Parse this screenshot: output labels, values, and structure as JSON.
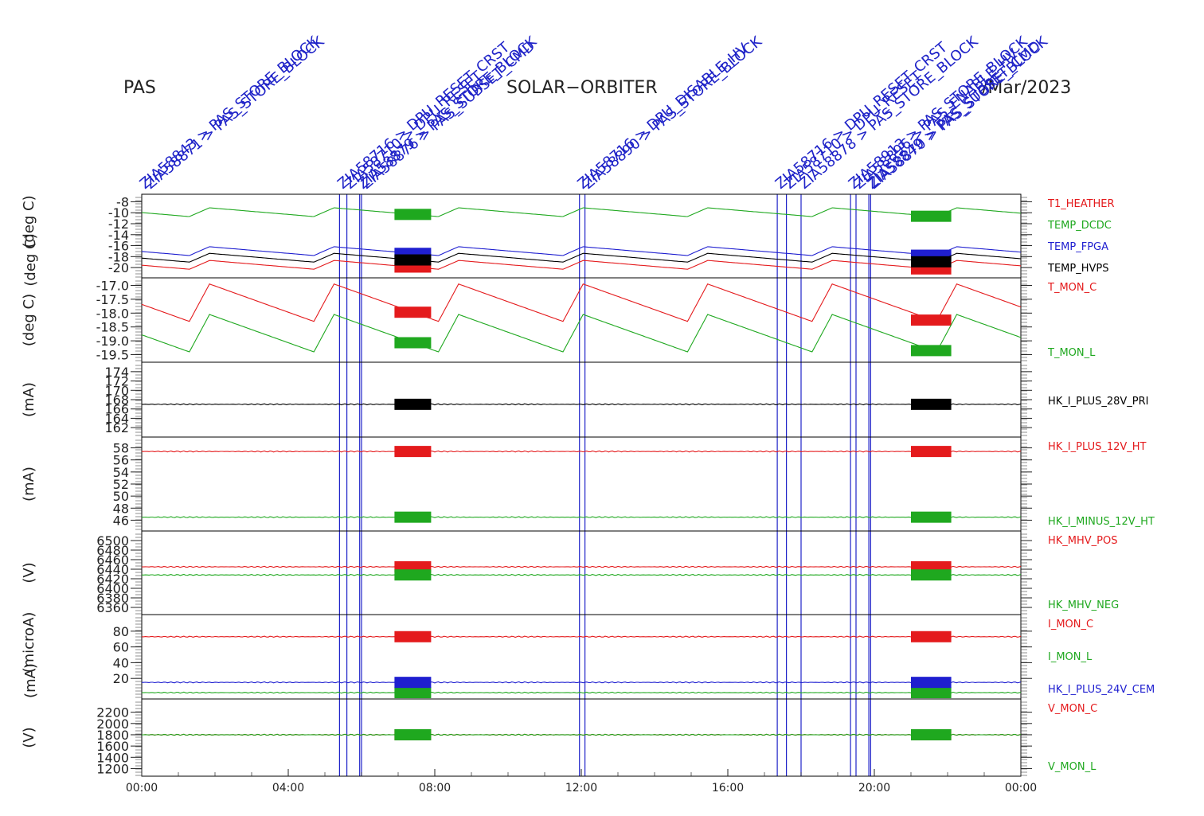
{
  "header": {
    "left": "PAS",
    "center": "SOLAR−ORBITER",
    "right": "/Mar/2023"
  },
  "x_axis": {
    "ticks": [
      "00:00",
      "04:00",
      "08:00",
      "12:00",
      "16:00",
      "20:00",
      "00:00"
    ]
  },
  "commands": {
    "color": "#1f23c8",
    "lines_h": [
      5.4,
      5.6,
      5.95,
      6.0,
      11.95,
      12.1,
      17.35,
      17.6,
      18.0,
      19.35,
      19.5,
      19.85,
      19.9
    ],
    "labels": [
      {
        "text": "ZIA58843 > PAS_STORE_BLOCK",
        "h": 0.0
      },
      {
        "text": "ZIA58871 > PAS_STORE_BLOCK",
        "h": 0.15
      },
      {
        "text": "ZIA58716 > DPU_RESET_CRST",
        "h": 5.4
      },
      {
        "text": "ZIA58710 > DPU_RESET",
        "h": 5.6
      },
      {
        "text": "ZIA58879 > PAS_STORE_BLOCK",
        "h": 5.95
      },
      {
        "text": "ZIA58876 > PAS_SUBSET_CMD",
        "h": 6.05
      },
      {
        "text": "ZIA58716 > DPU_DISABLE_HV",
        "h": 11.95
      },
      {
        "text": "ZIA58890 > PAS_STORE_BLOCK",
        "h": 12.1
      },
      {
        "text": "ZIA58716 > DPU_RESET_CRST",
        "h": 17.35
      },
      {
        "text": "ZIA58710 > DPU_RESET",
        "h": 17.6
      },
      {
        "text": "ZIA58878 > PAS_STORE_BLOCK",
        "h": 18.0
      },
      {
        "text": "ZIA58913 > PAS_STORE_BLOCK",
        "h": 19.35
      },
      {
        "text": "ZIA58896 > PAS_ENABLE_HV",
        "h": 19.5
      },
      {
        "text": "ZIA58849 > PAS_SUBSET_CMD",
        "h": 19.85
      },
      {
        "text": "ZIA58870 > PAS_STORE_BLOCK",
        "h": 19.9
      }
    ]
  },
  "chart_data": [
    {
      "type": "line",
      "panel": "temperatures",
      "ylabel": "(deg C)",
      "ylabel2": "(deg C)",
      "ylim": [
        -21,
        -7.5
      ],
      "ticks": [
        "-8",
        "-10",
        "-12",
        "-14",
        "-16",
        "-18",
        "-20"
      ],
      "tick_values": [
        -8,
        -10,
        -12,
        -14,
        -16,
        -18,
        -20
      ],
      "series": [
        {
          "name": "T1_HEATHER",
          "color": "#e41a1c",
          "pattern": "saw",
          "base": -20.3,
          "amp": 1.6,
          "period": 3.4,
          "phase": 1.3
        },
        {
          "name": "TEMP_DCDC",
          "color": "#1fa81f",
          "pattern": "saw",
          "base": -10.7,
          "amp": 1.6,
          "period": 3.4,
          "phase": 1.3
        },
        {
          "name": "TEMP_FPGA",
          "color": "#1f1fd0",
          "pattern": "saw",
          "base": -17.8,
          "amp": 1.6,
          "period": 3.4,
          "phase": 1.3
        },
        {
          "name": "TEMP_HVPS",
          "color": "#000000",
          "pattern": "saw",
          "base": -19.0,
          "amp": 1.6,
          "period": 3.4,
          "phase": 1.3
        }
      ]
    },
    {
      "type": "line",
      "panel": "mon_temps",
      "ylabel": "(deg C)",
      "ylim": [
        -19.6,
        -16.9
      ],
      "ticks": [
        "-17.0",
        "-17.5",
        "-18.0",
        "-18.5",
        "-19.0",
        "-19.5"
      ],
      "tick_values": [
        -17.0,
        -17.5,
        -18.0,
        -18.5,
        -19.0,
        -19.5
      ],
      "series": [
        {
          "name": "T_MON_C",
          "color": "#e41a1c",
          "pattern": "saw",
          "base": -18.3,
          "amp": 1.35,
          "period": 3.4,
          "phase": 1.3
        },
        {
          "name": "T_MON_L",
          "color": "#1fa81f",
          "pattern": "saw",
          "base": -19.4,
          "amp": 1.35,
          "period": 3.4,
          "phase": 1.3
        }
      ]
    },
    {
      "type": "line",
      "panel": "primary_current",
      "ylabel": "(mA)",
      "ylim": [
        161,
        175
      ],
      "ticks": [
        "174",
        "172",
        "170",
        "168",
        "166",
        "164",
        "162"
      ],
      "tick_values": [
        174,
        172,
        170,
        168,
        166,
        164,
        162
      ],
      "series": [
        {
          "name": "HK_I_PLUS_28V_PRI",
          "color": "#000000",
          "pattern": "flat",
          "base": 167.0
        }
      ]
    },
    {
      "type": "line",
      "panel": "plus_minus_12v",
      "ylabel": "(mA)",
      "ylim": [
        45,
        59
      ],
      "ticks": [
        "58",
        "56",
        "54",
        "52",
        "50",
        "48",
        "46"
      ],
      "tick_values": [
        58,
        56,
        54,
        52,
        50,
        48,
        46
      ],
      "series": [
        {
          "name": "HK_I_PLUS_12V_HT",
          "color": "#e41a1c",
          "pattern": "flat",
          "base": 57.4
        },
        {
          "name": "HK_I_MINUS_12V_HT",
          "color": "#1fa81f",
          "pattern": "flat",
          "base": 46.5
        }
      ]
    },
    {
      "type": "line",
      "panel": "mhv",
      "ylabel": "(V)",
      "ylim": [
        6355,
        6510
      ],
      "ticks": [
        "6500",
        "6480",
        "6460",
        "6440",
        "6420",
        "6400",
        "6380",
        "6360"
      ],
      "tick_values": [
        6500,
        6480,
        6460,
        6440,
        6420,
        6400,
        6380,
        6360
      ],
      "series": [
        {
          "name": "HK_MHV_POS",
          "color": "#e41a1c",
          "pattern": "flat",
          "base": 6445
        },
        {
          "name": "HK_MHV_NEG",
          "color": "#1fa81f",
          "pattern": "flat",
          "base": 6428
        }
      ]
    },
    {
      "type": "line",
      "panel": "mon_currents",
      "ylabel": "(microA)",
      "ylabel2": "(mA)",
      "ylim": [
        0,
        95
      ],
      "ticks": [
        "80",
        "60",
        "40",
        "20"
      ],
      "tick_values": [
        80,
        60,
        40,
        20
      ],
      "series": [
        {
          "name": "I_MON_C",
          "color": "#e41a1c",
          "pattern": "flat",
          "base": 73
        },
        {
          "name": "I_MON_L",
          "color": "#1fa81f",
          "pattern": "flat",
          "base": 2
        },
        {
          "name": "HK_I_PLUS_24V_CEM",
          "color": "#1f1fd0",
          "pattern": "flat",
          "base": 15
        }
      ]
    },
    {
      "type": "line",
      "panel": "mon_voltages",
      "ylabel": "(V)",
      "ylim": [
        1150,
        2350
      ],
      "ticks": [
        "2200",
        "2000",
        "1800",
        "1600",
        "1400",
        "1200"
      ],
      "tick_values": [
        2200,
        2000,
        1800,
        1600,
        1400,
        1200
      ],
      "series": [
        {
          "name": "V_MON_C",
          "color": "#e41a1c",
          "pattern": "flat",
          "base": 1800
        },
        {
          "name": "V_MON_L",
          "color": "#1fa81f",
          "pattern": "flat",
          "base": 1800
        }
      ]
    }
  ]
}
